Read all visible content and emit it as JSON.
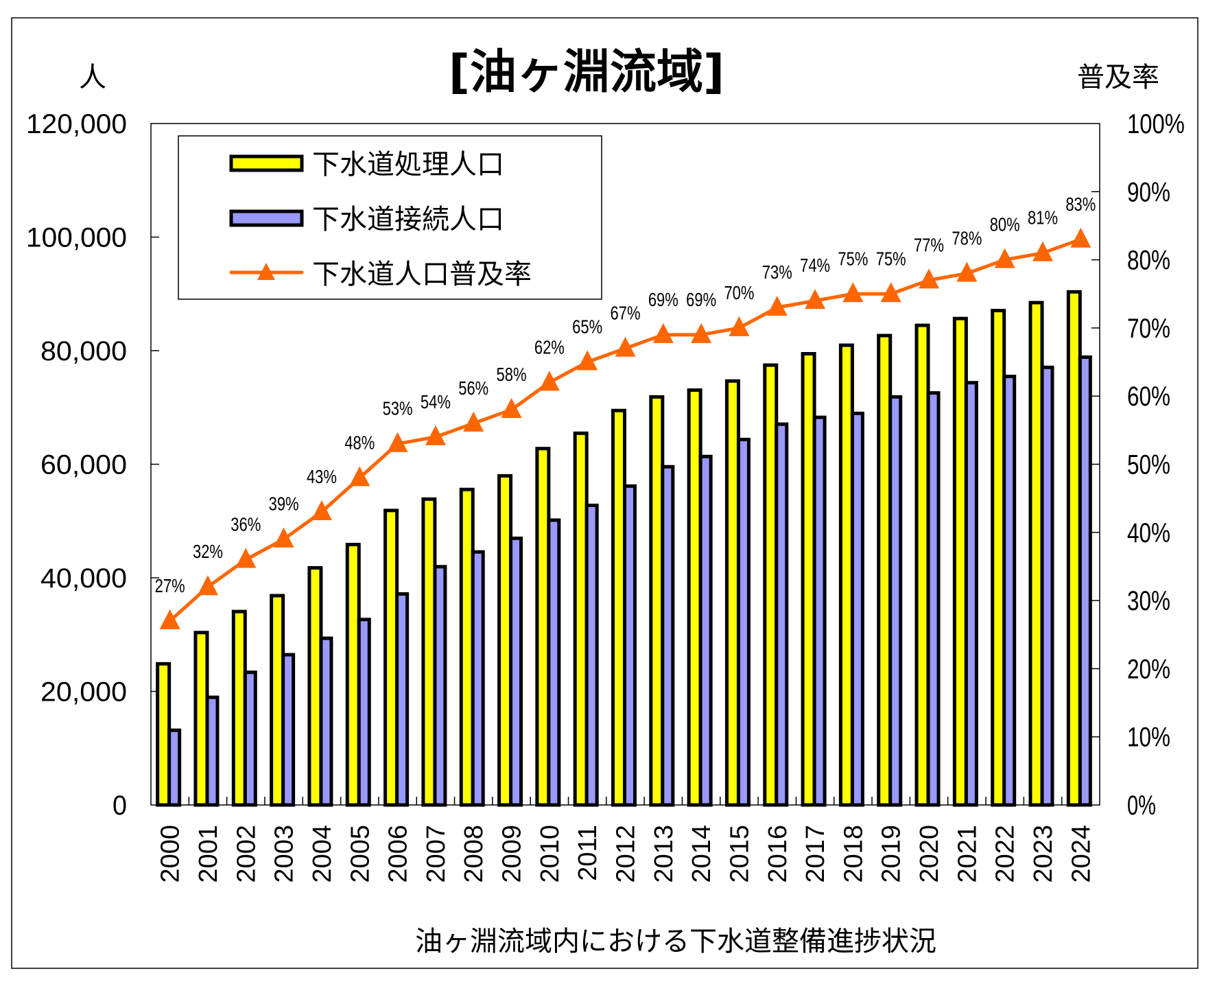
{
  "chart_data": {
    "type": "bar",
    "title": "[油ヶ淵流域]",
    "xlabel": "油ヶ淵流域内における下水道整備進捗状況",
    "ylabel_left": "人",
    "ylabel_right": "普及率",
    "categories": [
      "2000",
      "2001",
      "2002",
      "2003",
      "2004",
      "2005",
      "2006",
      "2007",
      "2008",
      "2009",
      "2010",
      "2011",
      "2012",
      "2013",
      "2014",
      "2015",
      "2016",
      "2017",
      "2018",
      "2019",
      "2020",
      "2021",
      "2022",
      "2023",
      "2024"
    ],
    "y_left": {
      "range": [
        0,
        120000
      ],
      "ticks": [
        0,
        20000,
        40000,
        60000,
        80000,
        100000,
        120000
      ],
      "tick_labels": [
        "0",
        "20,000",
        "40,000",
        "60,000",
        "80,000",
        "100,000",
        "120,000"
      ]
    },
    "y_right": {
      "range": [
        0,
        100
      ],
      "ticks": [
        0,
        10,
        20,
        30,
        40,
        50,
        60,
        70,
        80,
        90,
        100
      ],
      "tick_labels": [
        "0%",
        "10%",
        "20%",
        "30%",
        "40%",
        "50%",
        "60%",
        "70%",
        "80%",
        "90%",
        "100%"
      ]
    },
    "grid": false,
    "legend_position": "top-left",
    "series": [
      {
        "name": "下水道処理人口",
        "type": "bar",
        "axis": "left",
        "color": "#FFFF00",
        "values": [
          25100,
          30600,
          34300,
          37100,
          42000,
          46100,
          52100,
          54100,
          55800,
          58200,
          63000,
          65700,
          69700,
          72100,
          73300,
          74900,
          77700,
          79700,
          81200,
          82900,
          84700,
          85900,
          87300,
          88700,
          90600
        ]
      },
      {
        "name": "下水道接続人口",
        "type": "bar",
        "axis": "left",
        "color": "#9999FF",
        "values": [
          13400,
          19200,
          23600,
          26700,
          29600,
          32900,
          37400,
          42200,
          44800,
          47200,
          50400,
          53000,
          56400,
          59800,
          61600,
          64600,
          67300,
          68500,
          69200,
          72100,
          72800,
          74600,
          75700,
          77300,
          79100
        ]
      },
      {
        "name": "下水道人口普及率",
        "type": "line",
        "axis": "right",
        "marker": "triangle",
        "color": "#FF6600",
        "values": [
          27,
          32,
          36,
          39,
          43,
          48,
          53,
          54,
          56,
          58,
          62,
          65,
          67,
          69,
          69,
          70,
          73,
          74,
          75,
          75,
          77,
          78,
          80,
          81,
          83
        ],
        "data_labels": [
          "27%",
          "32%",
          "36%",
          "39%",
          "43%",
          "48%",
          "53%",
          "54%",
          "56%",
          "58%",
          "62%",
          "65%",
          "67%",
          "69%",
          "69%",
          "70%",
          "73%",
          "74%",
          "75%",
          "75%",
          "77%",
          "78%",
          "80%",
          "81%",
          "83%"
        ]
      }
    ]
  }
}
